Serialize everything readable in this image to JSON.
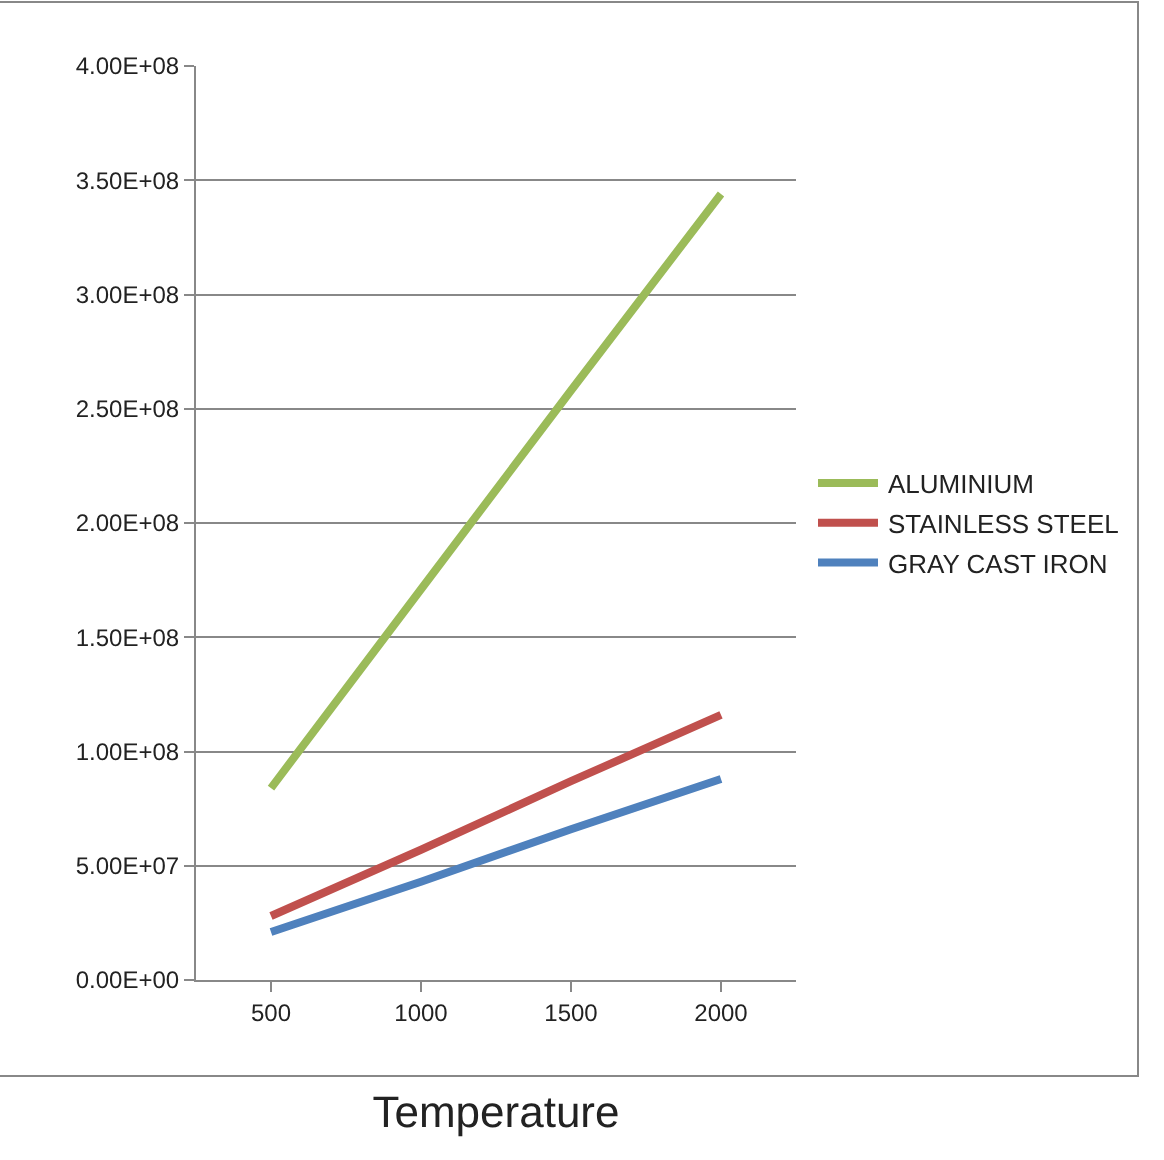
{
  "chart_data": {
    "type": "line",
    "xlabel": "Temperature",
    "categories": [
      "500",
      "1000",
      "1500",
      "2000"
    ],
    "series": [
      {
        "name": "ALUMINIUM",
        "color": "#9bbb59",
        "values": [
          84000000,
          171000000,
          258000000,
          344000000
        ]
      },
      {
        "name": "STAINLESS STEEL",
        "color": "#c0504d",
        "values": [
          28000000,
          57000000,
          87000000,
          116000000
        ]
      },
      {
        "name": "GRAY CAST IRON",
        "color": "#4f81bd",
        "values": [
          21000000,
          43000000,
          66000000,
          88000000
        ]
      }
    ],
    "ylim": [
      0,
      400000000
    ],
    "yticks": [
      {
        "value": 0,
        "label": "0.00E+00"
      },
      {
        "value": 50000000,
        "label": "5.00E+07"
      },
      {
        "value": 100000000,
        "label": "1.00E+08"
      },
      {
        "value": 150000000,
        "label": "1.50E+08"
      },
      {
        "value": 200000000,
        "label": "2.00E+08"
      },
      {
        "value": 250000000,
        "label": "2.50E+08"
      },
      {
        "value": 300000000,
        "label": "3.00E+08"
      },
      {
        "value": 350000000,
        "label": "3.50E+08"
      },
      {
        "value": 400000000,
        "label": "4.00E+08"
      }
    ],
    "grid": "y",
    "legend": "right",
    "marker": "none",
    "line_style": "solid"
  }
}
